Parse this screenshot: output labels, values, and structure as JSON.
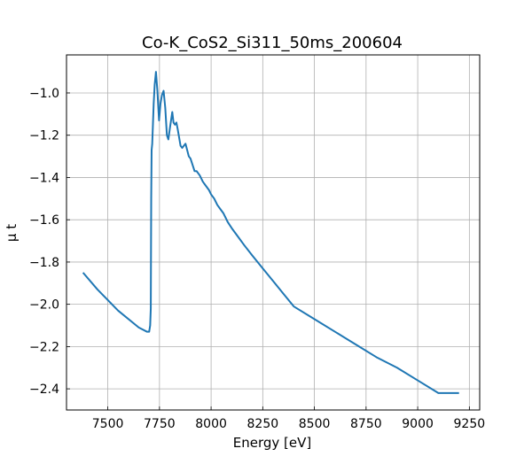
{
  "chart_data": {
    "type": "line",
    "title": "Co-K_CoS2_Si311_50ms_200604",
    "xlabel": "Energy [eV]",
    "ylabel": "μ t",
    "xlim": [
      7300,
      9300
    ],
    "ylim": [
      -2.5,
      -0.82
    ],
    "grid": true,
    "xticks": [
      7500,
      7750,
      8000,
      8250,
      8500,
      8750,
      9000,
      9250
    ],
    "yticks": [
      -2.4,
      -2.2,
      -2.0,
      -1.8,
      -1.6,
      -1.4,
      -1.2,
      -1.0
    ],
    "xtick_labels": [
      "7500",
      "7750",
      "8000",
      "8250",
      "8500",
      "8750",
      "9000",
      "9250"
    ],
    "ytick_labels": [
      "−2.4",
      "−2.2",
      "−2.0",
      "−1.8",
      "−1.6",
      "−1.4",
      "−1.2",
      "−1.0"
    ],
    "series": [
      {
        "color": "#1f77b4",
        "x": [
          7380,
          7450,
          7550,
          7650,
          7690,
          7700,
          7705,
          7708,
          7710,
          7712,
          7715,
          7718,
          7722,
          7727,
          7733,
          7740,
          7748,
          7755,
          7762,
          7770,
          7778,
          7786,
          7793,
          7800,
          7806,
          7812,
          7818,
          7825,
          7832,
          7838,
          7845,
          7852,
          7860,
          7868,
          7876,
          7884,
          7892,
          7900,
          7910,
          7920,
          7930,
          7945,
          7960,
          7975,
          7990,
          8000,
          8015,
          8030,
          8045,
          8060,
          8080,
          8100,
          8130,
          8160,
          8200,
          8250,
          8300,
          8350,
          8400,
          8500,
          8600,
          8700,
          8800,
          8900,
          9000,
          9100,
          9200
        ],
        "y": [
          -1.85,
          -1.93,
          -2.03,
          -2.11,
          -2.13,
          -2.13,
          -2.1,
          -2.02,
          -1.5,
          -1.27,
          -1.24,
          -1.16,
          -1.05,
          -0.96,
          -0.9,
          -0.99,
          -1.13,
          -1.05,
          -1.01,
          -0.99,
          -1.07,
          -1.2,
          -1.22,
          -1.17,
          -1.13,
          -1.09,
          -1.14,
          -1.15,
          -1.14,
          -1.17,
          -1.21,
          -1.25,
          -1.26,
          -1.25,
          -1.24,
          -1.27,
          -1.3,
          -1.31,
          -1.34,
          -1.37,
          -1.37,
          -1.39,
          -1.42,
          -1.44,
          -1.46,
          -1.48,
          -1.5,
          -1.53,
          -1.55,
          -1.57,
          -1.61,
          -1.64,
          -1.68,
          -1.72,
          -1.77,
          -1.83,
          -1.89,
          -1.95,
          -2.01,
          -2.07,
          -2.13,
          -2.19,
          -2.25,
          -2.3,
          -2.36,
          -2.42,
          -2.42
        ]
      }
    ]
  }
}
